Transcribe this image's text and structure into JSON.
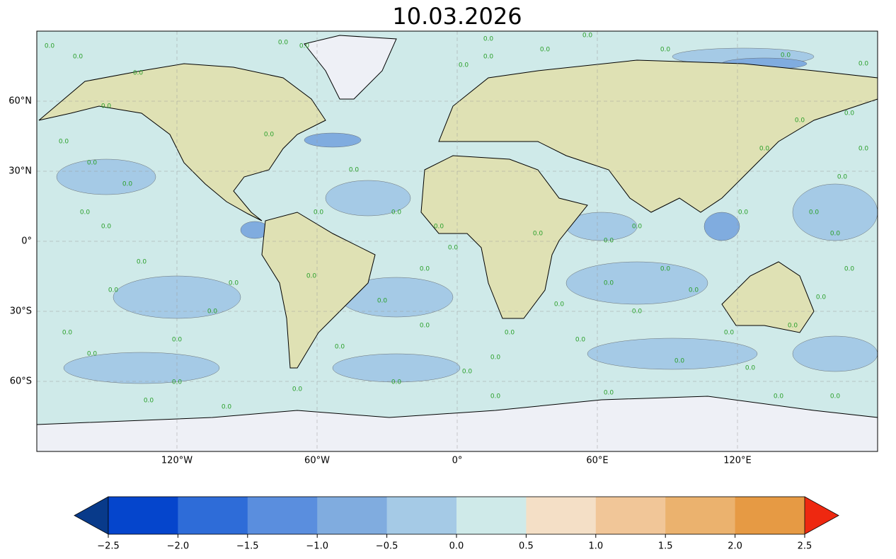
{
  "chart_data": {
    "type": "map",
    "title": "10.03.2026",
    "xlim": [
      -180,
      180
    ],
    "ylim": [
      -90,
      90
    ],
    "xticks": [
      {
        "value": -120,
        "label": "120°W"
      },
      {
        "value": -60,
        "label": "60°W"
      },
      {
        "value": 0,
        "label": "0°"
      },
      {
        "value": 60,
        "label": "60°E"
      },
      {
        "value": 120,
        "label": "120°E"
      }
    ],
    "yticks": [
      {
        "value": 60,
        "label": "60°N"
      },
      {
        "value": 30,
        "label": "30°N"
      },
      {
        "value": 0,
        "label": "0°"
      },
      {
        "value": -30,
        "label": "30°S"
      },
      {
        "value": -60,
        "label": "60°S"
      }
    ],
    "grid": true,
    "contour_label": "0.0",
    "colorbar": {
      "levels": [
        {
          "value": -2.5,
          "label": "−2.5"
        },
        {
          "value": -2,
          "label": "−2.0"
        },
        {
          "value": -1.5,
          "label": "−1.5"
        },
        {
          "value": -1,
          "label": "−1.0"
        },
        {
          "value": -0.5,
          "label": "−0.5"
        },
        {
          "value": 0,
          "label": "0.0"
        },
        0.5,
        {
          "value": 1,
          "label": "1.0"
        },
        1.5,
        {
          "value": 2,
          "label": "2.0"
        },
        2.5
      ],
      "colors": [
        "#0545cc",
        "#2e6cd8",
        "#5a8ede",
        "#80acdf",
        "#a5cae6",
        "#cfeae9",
        "#f4dfc6",
        "#f1c698",
        "#ebb26e",
        "#e69a44"
      ],
      "under_color": "#083a8a",
      "over_color": "#ee2810"
    }
  }
}
